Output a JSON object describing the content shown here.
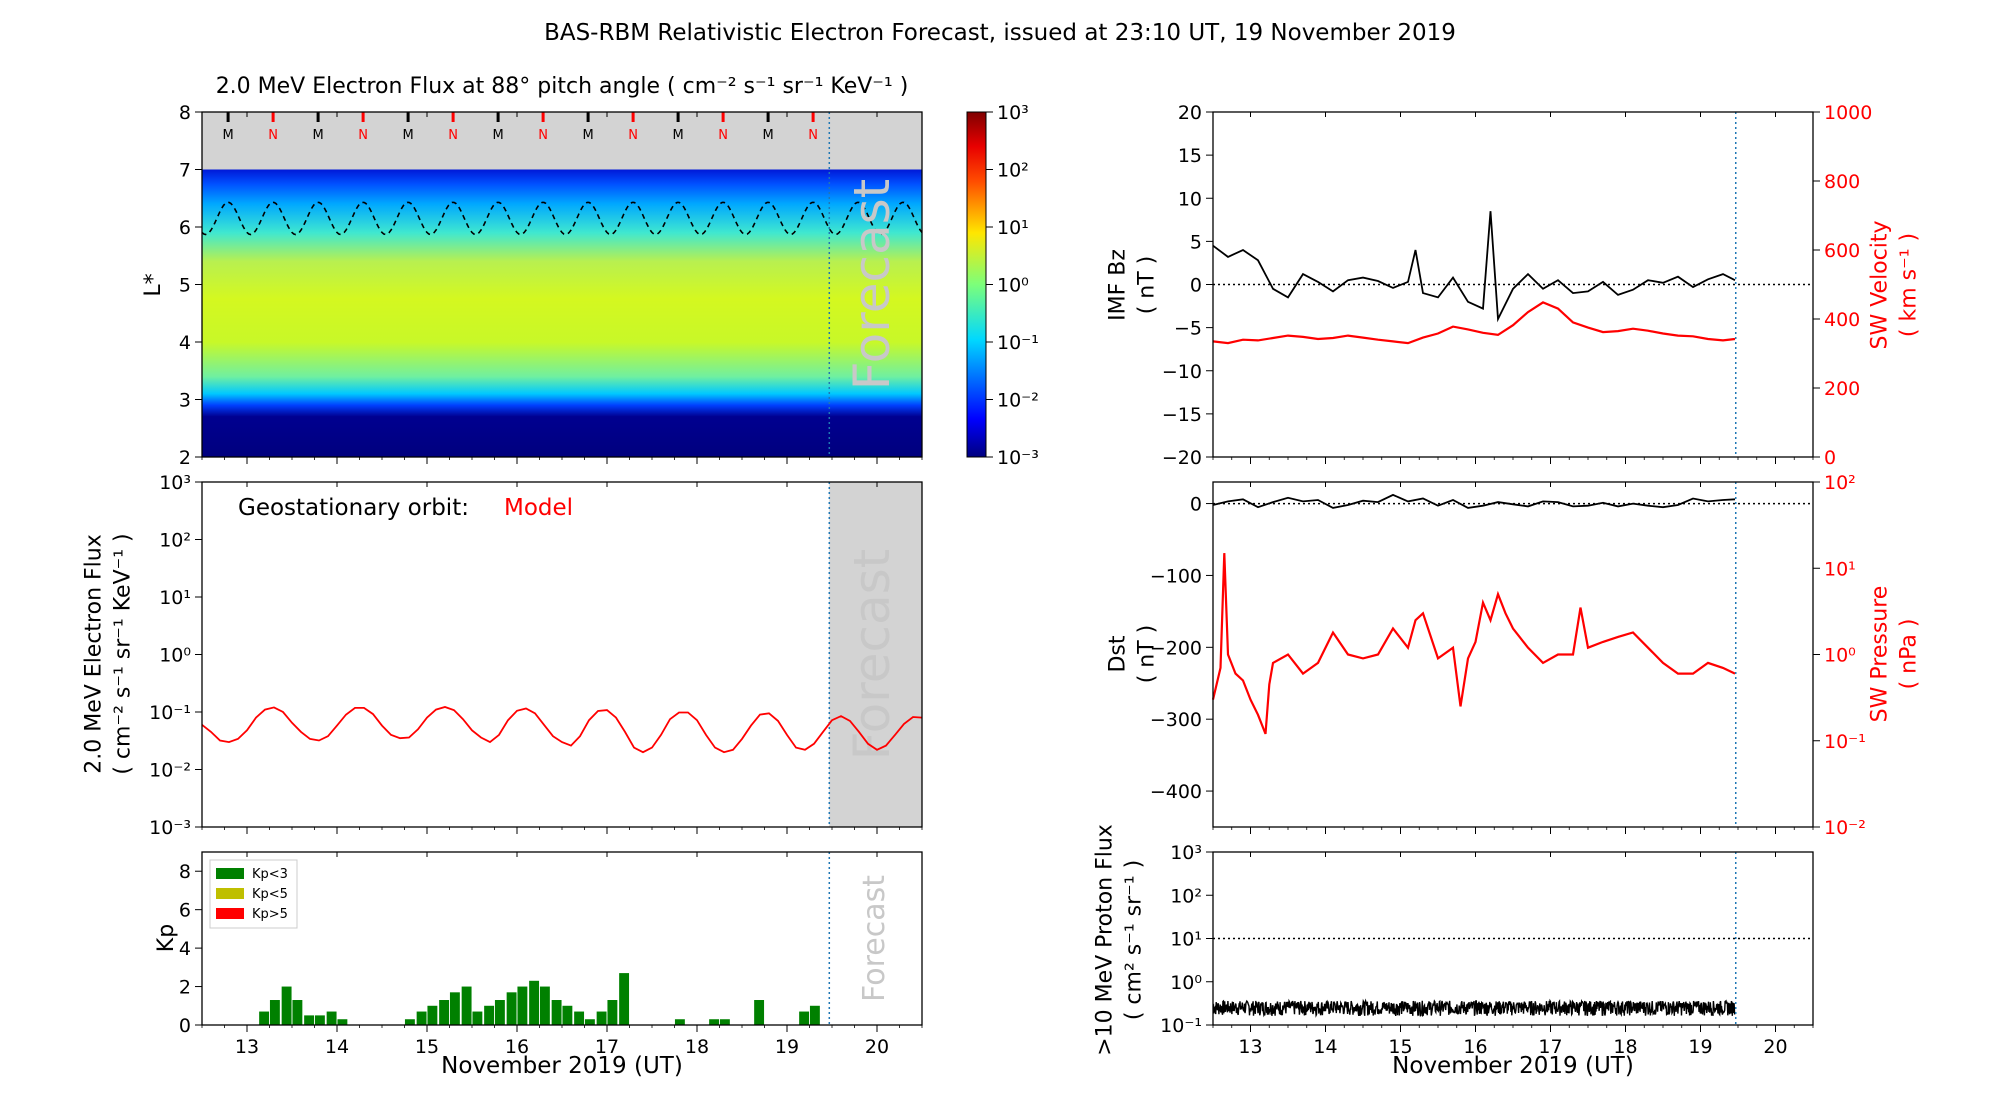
{
  "suptitle": "BAS-RBM Relativistic Electron Forecast, issued at 23:10 UT, 19 November 2019",
  "colors": {
    "model": "#ff0000",
    "kp_low": "#008000",
    "kp_mid": "#bfbf00",
    "kp_high": "#ff0000",
    "forecast_shade": "#d3d3d3",
    "forecast_text": "#c8c8c8",
    "now_line": "#1f77b4"
  },
  "chart_data": [
    {
      "id": "flux_map",
      "type": "heatmap",
      "title": "2.0 MeV Electron Flux at 88° pitch angle ( cm⁻² s⁻¹ sr⁻¹ KeV⁻¹ )",
      "ylabel": "L*",
      "xlim": [
        12.5,
        20.5
      ],
      "ylim": [
        2,
        8
      ],
      "yticks": [
        "2",
        "3",
        "4",
        "5",
        "6",
        "7",
        "8"
      ],
      "forecast_label": "Forecast",
      "now": 19.47,
      "mlt_markers": [
        "M",
        "N",
        "M",
        "N",
        "M",
        "N",
        "M",
        "N",
        "M",
        "N",
        "M",
        "N",
        "M",
        "N"
      ],
      "mlt_times": [
        12.79,
        13.29,
        13.79,
        14.29,
        14.79,
        15.29,
        15.79,
        16.29,
        16.79,
        17.29,
        17.79,
        18.29,
        18.79,
        19.29
      ],
      "colorbar": {
        "scale": "log",
        "ticks": [
          "10³",
          "10²",
          "10¹",
          "10⁰",
          "10⁻¹",
          "10⁻²",
          "10⁻³"
        ],
        "range": [
          -3,
          3
        ]
      },
      "magnetopause_L": {
        "mean": 6.15,
        "amplitude": 0.28,
        "period_days": 0.5
      }
    },
    {
      "id": "geo_flux",
      "type": "line",
      "annotation": "Geostationary orbit:",
      "annotation_value": "Model",
      "ylabel_lines": [
        "2.0 MeV Electron Flux",
        "( cm⁻² s⁻¹ sr⁻¹ KeV⁻¹ )"
      ],
      "yscale": "log",
      "ylim": [
        -3,
        3
      ],
      "yticks": [
        "10⁻³",
        "10⁻²",
        "10⁻¹",
        "10⁰",
        "10¹",
        "10²",
        "10³"
      ],
      "xlim": [
        12.5,
        20.5
      ],
      "forecast_label": "Forecast",
      "series": [
        {
          "x": [
            12.5,
            12.6,
            12.7,
            12.8,
            12.9,
            13.0,
            13.1,
            13.2,
            13.3,
            13.4,
            13.5,
            13.6,
            13.7,
            13.8,
            13.9,
            14.0,
            14.1,
            14.2,
            14.3,
            14.4,
            14.5,
            14.6,
            14.7,
            14.8,
            14.9,
            15.0,
            15.1,
            15.2,
            15.3,
            15.4,
            15.5,
            15.6,
            15.7,
            15.8,
            15.9,
            16.0,
            16.1,
            16.2,
            16.3,
            16.4,
            16.5,
            16.6,
            16.7,
            16.8,
            16.9,
            17.0,
            17.1,
            17.2,
            17.3,
            17.4,
            17.5,
            17.6,
            17.7,
            17.8,
            17.9,
            18.0,
            18.1,
            18.2,
            18.3,
            18.4,
            18.5,
            18.6,
            18.7,
            18.8,
            18.9,
            19.0,
            19.1,
            19.2,
            19.3,
            19.4,
            19.5,
            19.6,
            19.7,
            19.8,
            19.9,
            20.0,
            20.1,
            20.2,
            20.3,
            20.4,
            20.5
          ],
          "y": [
            0.06,
            0.045,
            0.032,
            0.03,
            0.034,
            0.048,
            0.08,
            0.11,
            0.12,
            0.1,
            0.065,
            0.045,
            0.034,
            0.032,
            0.038,
            0.058,
            0.09,
            0.118,
            0.118,
            0.092,
            0.058,
            0.04,
            0.035,
            0.036,
            0.05,
            0.08,
            0.11,
            0.122,
            0.108,
            0.075,
            0.048,
            0.036,
            0.03,
            0.04,
            0.072,
            0.105,
            0.115,
            0.095,
            0.06,
            0.038,
            0.03,
            0.026,
            0.038,
            0.072,
            0.104,
            0.108,
            0.08,
            0.045,
            0.024,
            0.02,
            0.024,
            0.04,
            0.075,
            0.098,
            0.098,
            0.072,
            0.04,
            0.024,
            0.02,
            0.022,
            0.034,
            0.058,
            0.09,
            0.095,
            0.07,
            0.04,
            0.024,
            0.022,
            0.028,
            0.045,
            0.072,
            0.085,
            0.07,
            0.045,
            0.028,
            0.022,
            0.026,
            0.04,
            0.062,
            0.082,
            0.08
          ]
        }
      ]
    },
    {
      "id": "kp",
      "type": "bar",
      "ylabel": "Kp",
      "xlabel": "November 2019 (UT)",
      "ylim": [
        0,
        9
      ],
      "yticks": [
        "0",
        "2",
        "4",
        "6",
        "8"
      ],
      "xlim": [
        12.5,
        20.5
      ],
      "xticks": [
        "13",
        "14",
        "15",
        "16",
        "17",
        "18",
        "19",
        "20"
      ],
      "forecast_label": "Forecast",
      "legend": [
        "Kp<3",
        "Kp<5",
        "Kp>5"
      ],
      "legend_position": "upper-left",
      "x": [
        13.19,
        13.31,
        13.44,
        13.56,
        13.69,
        13.81,
        13.94,
        14.06,
        14.19,
        14.31,
        14.44,
        14.56,
        14.69,
        14.81,
        14.94,
        15.06,
        15.19,
        15.31,
        15.44,
        15.56,
        15.69,
        15.81,
        15.94,
        16.06,
        16.19,
        16.31,
        16.44,
        16.56,
        16.69,
        16.81,
        16.94,
        17.06,
        17.19,
        17.31,
        17.44,
        17.56,
        17.69,
        17.81,
        17.94,
        18.06,
        18.19,
        18.31,
        18.44,
        18.56,
        18.69,
        18.81,
        18.94,
        19.06,
        19.19,
        19.31,
        19.44
      ],
      "values": [
        0.7,
        1.3,
        2.0,
        1.3,
        0.5,
        0.5,
        0.7,
        0.3,
        0,
        0,
        0,
        0,
        0,
        0.3,
        0.7,
        1.0,
        1.3,
        1.7,
        2.0,
        0.7,
        1.0,
        1.3,
        1.7,
        2.0,
        2.3,
        2.0,
        1.3,
        1.0,
        0.7,
        0.3,
        0.7,
        1.3,
        2.7,
        0,
        0,
        0,
        0,
        0.3,
        0,
        0,
        0.3,
        0.3,
        0,
        0,
        1.3,
        0,
        0,
        0,
        0.7,
        1.0,
        0
      ]
    },
    {
      "id": "imf_sw",
      "type": "line",
      "ylabel_lines": [
        "IMF Bz",
        "( nT )"
      ],
      "ylim": [
        -20,
        20
      ],
      "yticks": [
        "20",
        "15",
        "10",
        "5",
        "0",
        "−5",
        "−10",
        "−15",
        "−20"
      ],
      "y2label_lines": [
        "SW Velocity",
        "( km s⁻¹ )"
      ],
      "y2lim": [
        0,
        1000
      ],
      "y2ticks": [
        "1000",
        "800",
        "600",
        "400",
        "200",
        "0"
      ],
      "xlim": [
        12.5,
        20.5
      ],
      "bz_series": {
        "x": [
          12.5,
          12.7,
          12.9,
          13.1,
          13.3,
          13.5,
          13.7,
          13.9,
          14.1,
          14.3,
          14.5,
          14.7,
          14.9,
          15.1,
          15.2,
          15.3,
          15.5,
          15.7,
          15.9,
          16.1,
          16.2,
          16.3,
          16.5,
          16.7,
          16.9,
          17.1,
          17.3,
          17.5,
          17.7,
          17.9,
          18.1,
          18.3,
          18.5,
          18.7,
          18.9,
          19.1,
          19.3,
          19.46
        ],
        "y": [
          4.5,
          3.2,
          4.0,
          2.8,
          -0.5,
          -1.5,
          1.2,
          0.3,
          -0.8,
          0.5,
          0.8,
          0.4,
          -0.4,
          0.3,
          4.0,
          -1.0,
          -1.5,
          0.8,
          -2.0,
          -2.8,
          8.5,
          -4.0,
          -0.5,
          1.2,
          -0.5,
          0.5,
          -1.0,
          -0.8,
          0.3,
          -1.2,
          -0.6,
          0.5,
          0.2,
          0.9,
          -0.3,
          0.6,
          1.2,
          0.5
        ]
      },
      "vsw_series": {
        "x": [
          12.5,
          12.7,
          12.9,
          13.1,
          13.3,
          13.5,
          13.7,
          13.9,
          14.1,
          14.3,
          14.5,
          14.7,
          14.9,
          15.1,
          15.3,
          15.5,
          15.7,
          15.9,
          16.1,
          16.3,
          16.5,
          16.7,
          16.9,
          17.1,
          17.3,
          17.5,
          17.7,
          17.9,
          18.1,
          18.3,
          18.5,
          18.7,
          18.9,
          19.1,
          19.3,
          19.46
        ],
        "y": [
          335,
          330,
          340,
          338,
          345,
          352,
          348,
          342,
          345,
          352,
          346,
          340,
          335,
          330,
          346,
          358,
          378,
          370,
          360,
          354,
          382,
          420,
          448,
          430,
          390,
          375,
          362,
          365,
          372,
          366,
          358,
          352,
          350,
          342,
          338,
          342
        ]
      }
    },
    {
      "id": "dst_pdyn",
      "type": "line",
      "ylabel_lines": [
        "Dst",
        "( nT )"
      ],
      "ylim": [
        -450,
        30
      ],
      "yticks": [
        "0",
        "−100",
        "−200",
        "−300",
        "−400"
      ],
      "y2label_lines": [
        "SW Pressure",
        "( nPa )"
      ],
      "y2scale": "log",
      "y2lim": [
        -2,
        2
      ],
      "y2ticks": [
        "10²",
        "10¹",
        "10⁰",
        "10⁻¹",
        "10⁻²"
      ],
      "xlim": [
        12.5,
        20.5
      ],
      "dst_series": {
        "x": [
          12.5,
          12.7,
          12.9,
          13.1,
          13.3,
          13.5,
          13.7,
          13.9,
          14.1,
          14.3,
          14.5,
          14.7,
          14.9,
          15.1,
          15.3,
          15.5,
          15.7,
          15.9,
          16.1,
          16.3,
          16.5,
          16.7,
          16.9,
          17.1,
          17.3,
          17.5,
          17.7,
          17.9,
          18.1,
          18.3,
          18.5,
          18.7,
          18.9,
          19.1,
          19.3,
          19.46
        ],
        "y": [
          -2,
          3,
          6,
          -5,
          2,
          8,
          3,
          5,
          -6,
          -2,
          4,
          2,
          12,
          3,
          7,
          -3,
          5,
          -6,
          -3,
          2,
          -1,
          -4,
          3,
          2,
          -4,
          -3,
          1,
          -4,
          0,
          -3,
          -5,
          -2,
          7,
          3,
          5,
          6
        ]
      },
      "pdyn_series": {
        "x": [
          12.5,
          12.6,
          12.65,
          12.7,
          12.8,
          12.9,
          13.0,
          13.1,
          13.2,
          13.25,
          13.3,
          13.5,
          13.7,
          13.9,
          14.1,
          14.3,
          14.5,
          14.7,
          14.9,
          15.1,
          15.2,
          15.3,
          15.5,
          15.7,
          15.8,
          15.9,
          16.0,
          16.1,
          16.2,
          16.3,
          16.4,
          16.5,
          16.7,
          16.9,
          17.1,
          17.3,
          17.4,
          17.5,
          17.7,
          17.9,
          18.1,
          18.3,
          18.5,
          18.7,
          18.9,
          19.1,
          19.3,
          19.46
        ],
        "y": [
          0.3,
          0.7,
          15,
          1.0,
          0.6,
          0.5,
          0.3,
          0.2,
          0.12,
          0.45,
          0.8,
          1.0,
          0.6,
          0.8,
          1.8,
          1.0,
          0.9,
          1.0,
          2.0,
          1.2,
          2.5,
          3.0,
          0.9,
          1.2,
          0.25,
          0.9,
          1.4,
          4.0,
          2.5,
          5.0,
          3.0,
          2.0,
          1.2,
          0.8,
          1.0,
          1.0,
          3.5,
          1.2,
          1.4,
          1.6,
          1.8,
          1.2,
          0.8,
          0.6,
          0.6,
          0.8,
          0.7,
          0.6
        ]
      }
    },
    {
      "id": "proton",
      "type": "line",
      "ylabel_lines": [
        ">10 MeV Proton Flux",
        "( cm² s⁻¹ sr⁻¹ )"
      ],
      "xlabel": "November 2019 (UT)",
      "yscale": "log",
      "ylim": [
        -1,
        3
      ],
      "yticks": [
        "10³",
        "10²",
        "10¹",
        "10⁰",
        "10⁻¹"
      ],
      "xlim": [
        12.5,
        20.5
      ],
      "xticks": [
        "13",
        "14",
        "15",
        "16",
        "17",
        "18",
        "19",
        "20"
      ],
      "threshold": 10,
      "series_x_range": [
        12.5,
        19.46
      ],
      "series_level": 0.25
    }
  ]
}
